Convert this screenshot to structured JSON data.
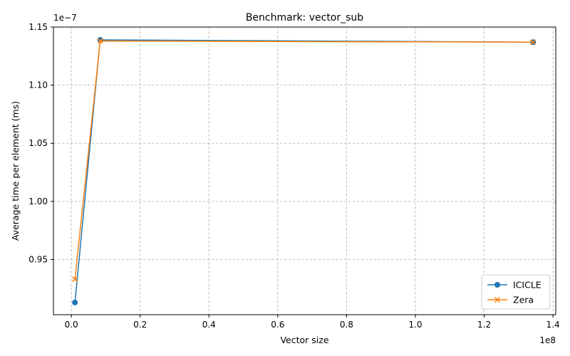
{
  "chart_data": {
    "type": "line",
    "title": "Benchmark: vector_sub",
    "xlabel": "Vector size",
    "ylabel": "Average time per element (ms)",
    "x_scale_label": "1e8",
    "y_scale_label": "1e−7",
    "xlim": [
      -5200000,
      140800000
    ],
    "ylim": [
      9.025e-08,
      1.15e-07
    ],
    "x_ticks": [
      0,
      20000000,
      40000000,
      60000000,
      80000000,
      100000000,
      120000000,
      140000000
    ],
    "x_tick_labels": [
      "0.0",
      "0.2",
      "0.4",
      "0.6",
      "0.8",
      "1.0",
      "1.2",
      "1.4"
    ],
    "y_ticks": [
      9.5e-08,
      1e-07,
      1.05e-07,
      1.1e-07,
      1.15e-07
    ],
    "y_tick_labels": [
      "0.95",
      "1.00",
      "1.05",
      "1.10",
      "1.15"
    ],
    "grid": true,
    "legend_position": "bottom-right",
    "series": [
      {
        "name": "ICICLE",
        "color": "#1f77b4",
        "marker": "circle",
        "x": [
          1048576,
          8388608,
          134217728
        ],
        "y": [
          9.13e-08,
          1.139e-07,
          1.137e-07
        ]
      },
      {
        "name": "Zera",
        "color": "#ff7f0e",
        "marker": "x",
        "x": [
          1048576,
          8388608,
          134217728
        ],
        "y": [
          9.33e-08,
          1.138e-07,
          1.137e-07
        ]
      }
    ]
  }
}
